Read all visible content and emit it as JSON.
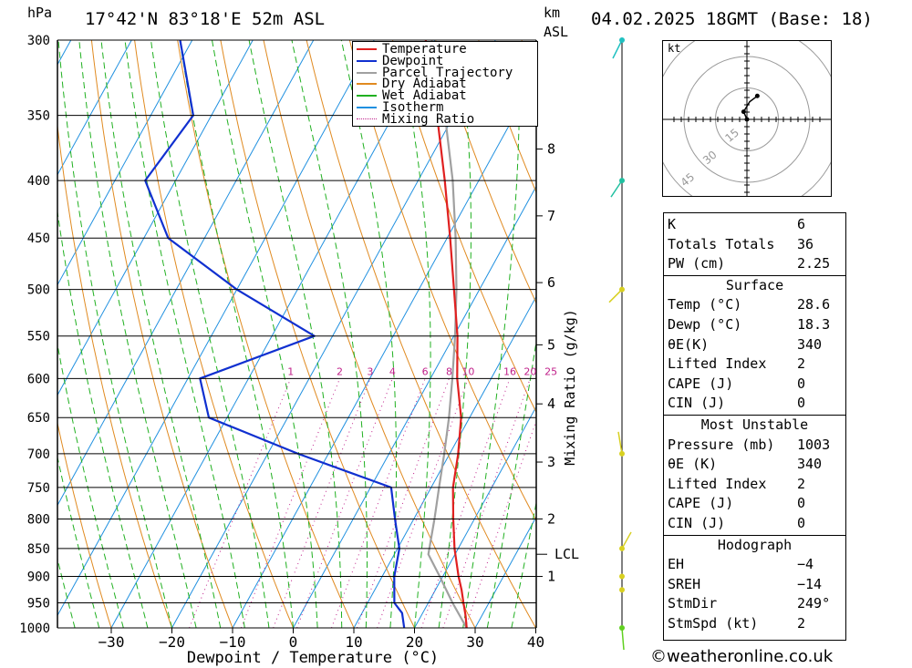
{
  "header": {
    "location": "17°42'N  83°18'E  52m  ASL",
    "datetime": "04.02.2025  18GMT  (Base: 18)",
    "p_unit": "hPa",
    "km_label": "km",
    "asl_label": "ASL"
  },
  "chart_data": {
    "type": "skew-t",
    "xlabel": "Dewpoint / Temperature (°C)",
    "ylabel": "hPa",
    "mixing_ratio_label": "Mixing Ratio (g/kg)",
    "x_ticks": [
      -30,
      -20,
      -10,
      0,
      10,
      20,
      30,
      40
    ],
    "pressure_levels": [
      300,
      350,
      400,
      450,
      500,
      550,
      600,
      650,
      700,
      750,
      800,
      850,
      900,
      950,
      1000
    ],
    "height_ticks_km": [
      {
        "km": "1",
        "p": 900
      },
      {
        "km": "2",
        "p": 800
      },
      {
        "km": "3",
        "p": 712
      },
      {
        "km": "4",
        "p": 632
      },
      {
        "km": "5",
        "p": 560
      },
      {
        "km": "6",
        "p": 493
      },
      {
        "km": "7",
        "p": 430
      },
      {
        "km": "8",
        "p": 375
      }
    ],
    "lcl": {
      "label": "LCL",
      "p": 860
    },
    "mixing_ratio_values": [
      "1",
      "2",
      "3",
      "4",
      "6",
      "8",
      "10",
      "16",
      "20",
      "25"
    ],
    "legend": [
      "Temperature",
      "Dewpoint",
      "Parcel Trajectory",
      "Dry Adiabat",
      "Wet Adiabat",
      "Isotherm",
      "Mixing Ratio"
    ],
    "colors": {
      "temperature": "#e02020",
      "dewpoint": "#1030d0",
      "parcel": "#a0a0a0",
      "dry_adiabat": "#e08a20",
      "wet_adiabat": "#20b020",
      "isotherm": "#2090e0",
      "mixing_ratio": "#c0208a"
    },
    "temperature_profile": [
      {
        "p": 1000,
        "t": 28.6
      },
      {
        "p": 975,
        "t": 27.3
      },
      {
        "p": 950,
        "t": 25.8
      },
      {
        "p": 925,
        "t": 24.3
      },
      {
        "p": 900,
        "t": 22.6
      },
      {
        "p": 850,
        "t": 19.4
      },
      {
        "p": 800,
        "t": 16.5
      },
      {
        "p": 750,
        "t": 13.6
      },
      {
        "p": 700,
        "t": 11.4
      },
      {
        "p": 650,
        "t": 8.6
      },
      {
        "p": 600,
        "t": 4.4
      },
      {
        "p": 550,
        "t": 0.6
      },
      {
        "p": 500,
        "t": -4.2
      },
      {
        "p": 450,
        "t": -9.5
      },
      {
        "p": 400,
        "t": -15.6
      },
      {
        "p": 350,
        "t": -22.8
      },
      {
        "p": 300,
        "t": -31.5
      }
    ],
    "dewpoint_profile": [
      {
        "p": 1000,
        "t": 18.3
      },
      {
        "p": 970,
        "t": 16.6
      },
      {
        "p": 950,
        "t": 14.4
      },
      {
        "p": 900,
        "t": 12.0
      },
      {
        "p": 850,
        "t": 10.3
      },
      {
        "p": 800,
        "t": 6.9
      },
      {
        "p": 750,
        "t": 3.4
      },
      {
        "p": 700,
        "t": -15.0
      },
      {
        "p": 650,
        "t": -33.0
      },
      {
        "p": 600,
        "t": -38.0
      },
      {
        "p": 550,
        "t": -23.0
      },
      {
        "p": 500,
        "t": -40.0
      },
      {
        "p": 450,
        "t": -56.0
      },
      {
        "p": 400,
        "t": -65.0
      },
      {
        "p": 350,
        "t": -63.0
      },
      {
        "p": 300,
        "t": -72.0
      }
    ],
    "parcel_profile": [
      {
        "p": 1000,
        "t": 28.6
      },
      {
        "p": 950,
        "t": 24.0
      },
      {
        "p": 900,
        "t": 19.5
      },
      {
        "p": 860,
        "t": 15.6
      },
      {
        "p": 800,
        "t": 13.4
      },
      {
        "p": 750,
        "t": 11.3
      },
      {
        "p": 700,
        "t": 9.1
      },
      {
        "p": 650,
        "t": 6.6
      },
      {
        "p": 600,
        "t": 3.6
      },
      {
        "p": 550,
        "t": 0.2
      },
      {
        "p": 500,
        "t": -3.8
      },
      {
        "p": 450,
        "t": -8.6
      },
      {
        "p": 400,
        "t": -14.3
      },
      {
        "p": 350,
        "t": -21.5
      },
      {
        "p": 300,
        "t": -30.5
      }
    ],
    "hodograph": {
      "unit": "kt",
      "rings": [
        "15",
        "30",
        "45"
      ],
      "points": [
        {
          "u": 0.0,
          "v": 0.0
        },
        {
          "u": -0.5,
          "v": 1.2
        },
        {
          "u": -1.2,
          "v": 2.8
        },
        {
          "u": 1.0,
          "v": 6.5
        },
        {
          "u": 3.8,
          "v": 8.6
        }
      ]
    }
  },
  "stats": {
    "general": [
      {
        "label": "K",
        "value": "6"
      },
      {
        "label": "Totals Totals",
        "value": "36"
      },
      {
        "label": "PW (cm)",
        "value": "2.25"
      }
    ],
    "surface": {
      "title": "Surface",
      "rows": [
        {
          "label": "Temp (°C)",
          "value": "28.6"
        },
        {
          "label": "Dewp (°C)",
          "value": "18.3"
        },
        {
          "label": "θE(K)",
          "value": "340"
        },
        {
          "label": "Lifted Index",
          "value": "2"
        },
        {
          "label": "CAPE (J)",
          "value": "0"
        },
        {
          "label": "CIN (J)",
          "value": "0"
        }
      ]
    },
    "most_unstable": {
      "title": "Most Unstable",
      "rows": [
        {
          "label": "Pressure (mb)",
          "value": "1003"
        },
        {
          "label": "θE (K)",
          "value": "340"
        },
        {
          "label": "Lifted Index",
          "value": "2"
        },
        {
          "label": "CAPE (J)",
          "value": "0"
        },
        {
          "label": "CIN (J)",
          "value": "0"
        }
      ]
    },
    "hodograph": {
      "title": "Hodograph",
      "rows": [
        {
          "label": "EH",
          "value": "-4"
        },
        {
          "label": "SREH",
          "value": "-14"
        },
        {
          "label": "StmDir",
          "value": "249°"
        },
        {
          "label": "StmSpd (kt)",
          "value": "2"
        }
      ]
    }
  },
  "credit": "©weatheronline.co.uk"
}
